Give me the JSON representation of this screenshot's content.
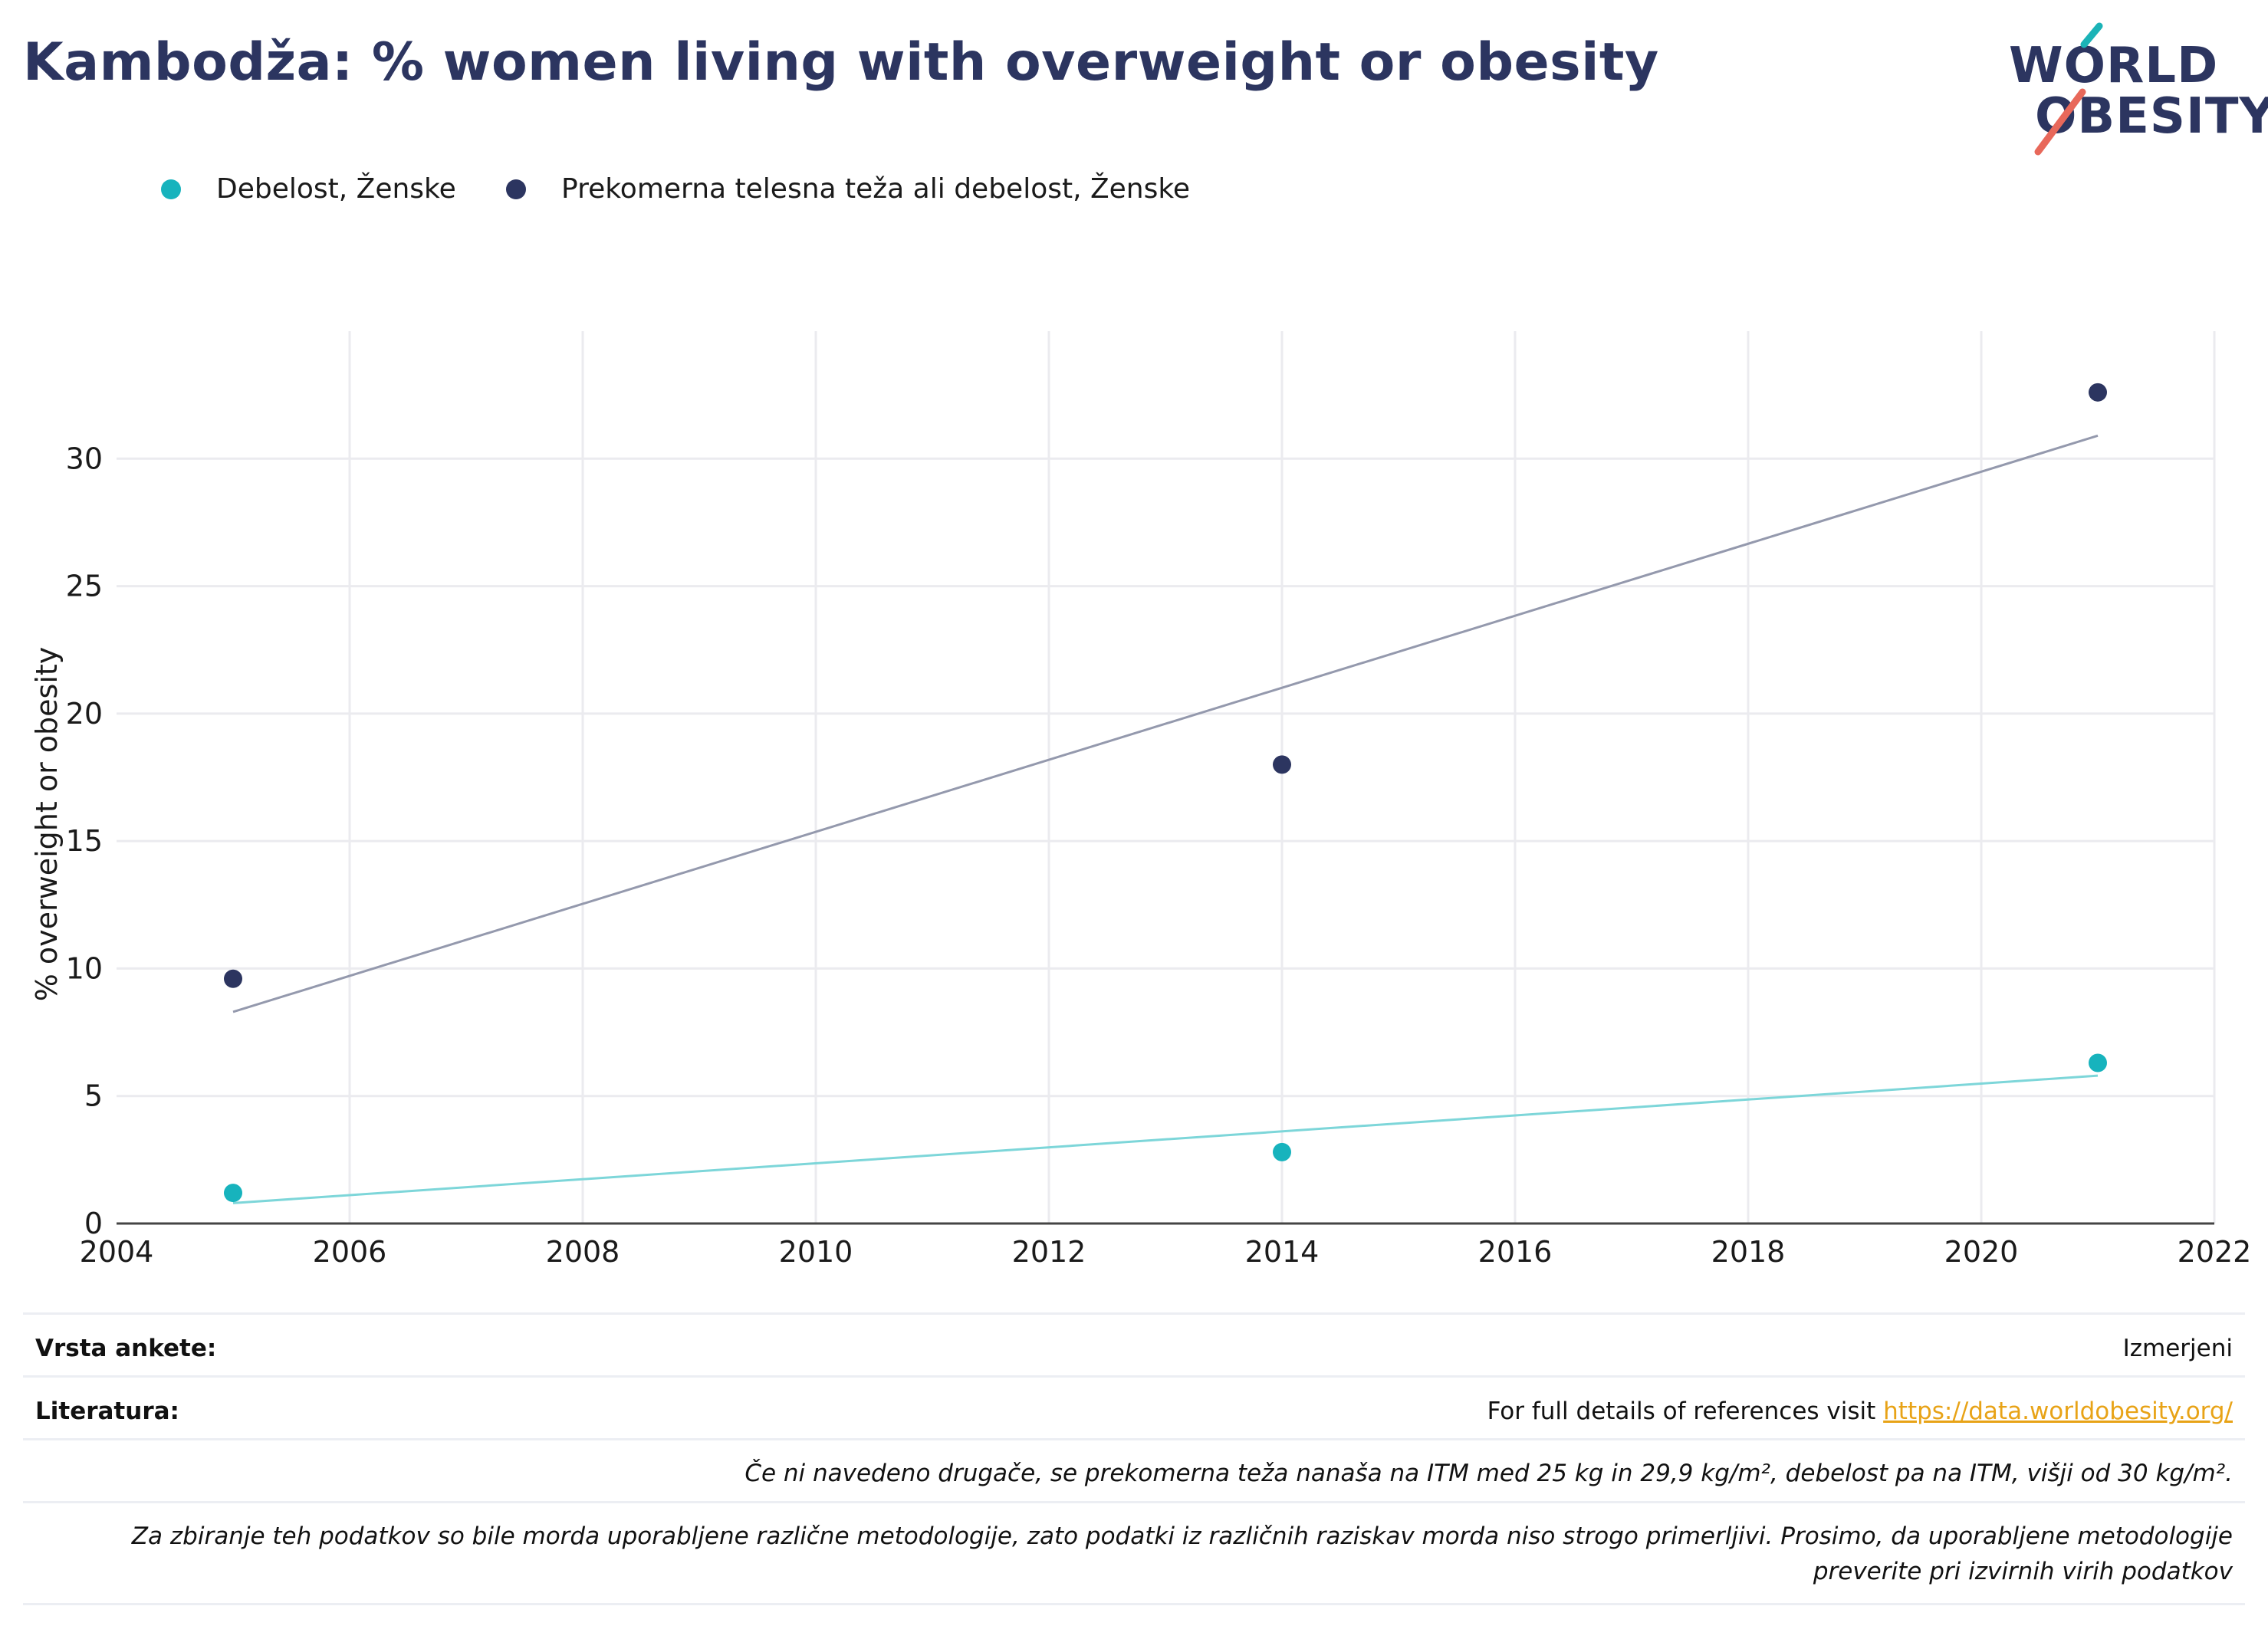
{
  "title": "Kambodža: % women living with overweight or obesity",
  "logo": {
    "line1": "WORLD",
    "line2": "OBESITY",
    "accent_teal": "#1bb3b7",
    "accent_red": "#e8685a"
  },
  "legend": [
    {
      "label": "Debelost, Ženske",
      "color": "#17b3bd"
    },
    {
      "label": "Prekomerna telesna teža ali debelost, Ženske",
      "color": "#2c3560"
    }
  ],
  "chart_data": {
    "type": "scatter",
    "ylabel": "% overweight or obesity",
    "xlabel": "",
    "xlim": [
      2004,
      2022
    ],
    "ylim": [
      0,
      35
    ],
    "x_ticks": [
      2004,
      2006,
      2008,
      2010,
      2012,
      2014,
      2016,
      2018,
      2020,
      2022
    ],
    "y_ticks": [
      0,
      5,
      10,
      15,
      20,
      25,
      30
    ],
    "grid": true,
    "legend_position": "top-left",
    "series": [
      {
        "name": "Debelost, Ženske",
        "color": "#17b3bd",
        "trend_color": "#7dd6d9",
        "points": [
          [
            2005,
            1.2
          ],
          [
            2014,
            2.8
          ],
          [
            2021,
            6.3
          ]
        ],
        "trend": [
          [
            2005,
            0.8
          ],
          [
            2021,
            5.8
          ]
        ]
      },
      {
        "name": "Prekomerna telesna teža ali debelost, Ženske",
        "color": "#2c3560",
        "trend_color": "#9499ad",
        "points": [
          [
            2005,
            9.6
          ],
          [
            2014,
            18.0
          ],
          [
            2021,
            32.6
          ]
        ],
        "trend": [
          [
            2005,
            8.3
          ],
          [
            2021,
            30.9
          ]
        ]
      }
    ]
  },
  "footer": {
    "survey_label": "Vrsta ankete:",
    "survey_value": "Izmerjeni",
    "refs_label": "Literatura:",
    "refs_text": "For full details of references visit ",
    "refs_link": "https://data.worldobesity.org/",
    "note1": "Če ni navedeno drugače, se prekomerna teža nanaša na ITM med 25 kg in 29,9 kg/m², debelost pa na ITM, višji od 30 kg/m².",
    "note2": "Za zbiranje teh podatkov so bile morda uporabljene različne metodologije, zato podatki iz različnih raziskav morda niso strogo primerljivi. Prosimo, da uporabljene metodologije preverite pri izvirnih virih podatkov"
  }
}
